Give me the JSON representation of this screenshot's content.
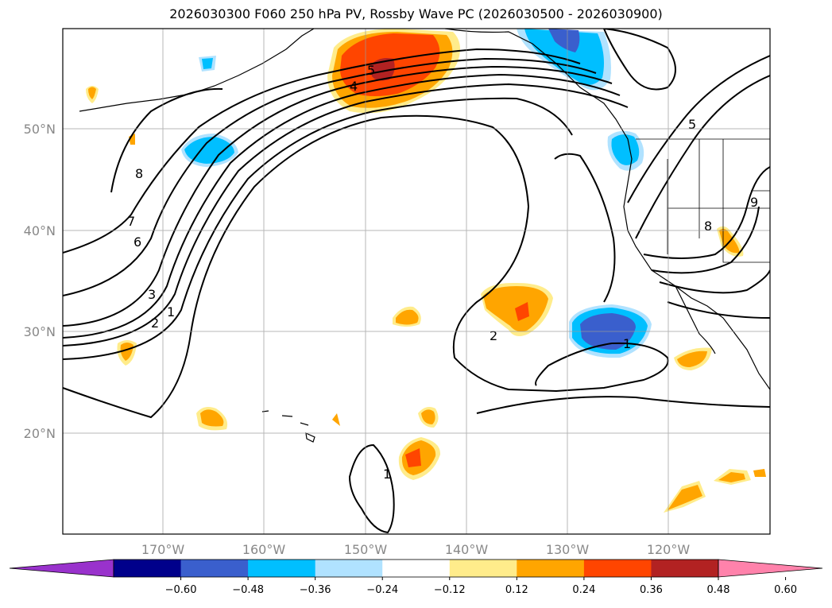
{
  "title": "2026030300 F060 250 hPa PV, Rossby Wave PC (2026030500 - 2026030900)",
  "lat_labels": [
    "50°N",
    "40°N",
    "30°N",
    "20°N"
  ],
  "lon_labels": [
    "170°W",
    "160°W",
    "150°W",
    "140°W",
    "130°W",
    "120°W"
  ],
  "colorbar": {
    "colors": [
      "#9932cc",
      "#00008b",
      "#3a5fcd",
      "#00bfff",
      "#b0e2ff",
      "#ffffff",
      "#ffec8b",
      "#ffa500",
      "#ff4500",
      "#b22222",
      "#ff82ab"
    ],
    "tick_labels": [
      "−0.60",
      "−0.48",
      "−0.36",
      "−0.24",
      "−0.12",
      "0.12",
      "0.24",
      "0.36",
      "0.48",
      "0.60"
    ]
  },
  "contour_labels": [
    "5",
    "4",
    "8",
    "7",
    "6",
    "3",
    "2",
    "1",
    "2",
    "1",
    "1",
    "5",
    "8",
    "9"
  ]
}
